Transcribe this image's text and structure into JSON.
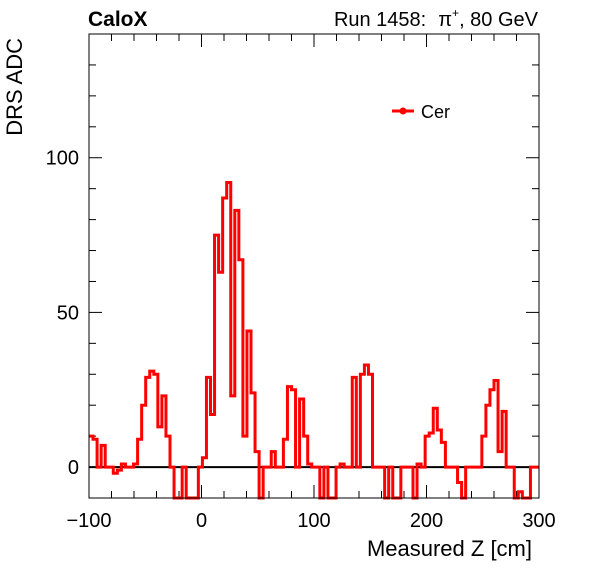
{
  "header": {
    "brand": "CaloX",
    "run_label": "Run 1458:",
    "particle_base": "π",
    "particle_sup": "+",
    "energy_label": ", 80 GeV"
  },
  "chart_data": {
    "type": "line",
    "style": "step-histogram",
    "xlabel": "Measured Z [cm]",
    "ylabel": "DRS ADC",
    "xlim": [
      -100,
      300
    ],
    "ylim": [
      -10,
      140
    ],
    "xticks": [
      -100,
      0,
      100,
      200,
      300
    ],
    "xtick_labels": [
      "−100",
      "0",
      "100",
      "200",
      "300"
    ],
    "yticks": [
      0,
      50,
      100
    ],
    "ytick_labels": [
      "0",
      "50",
      "100"
    ],
    "grid": false,
    "legend_position": "top-right",
    "zero_line": true,
    "series": [
      {
        "name": "Cer",
        "color": "#ff0000",
        "bin_width": 3.6,
        "x_start": -100,
        "values": [
          10,
          9,
          0,
          7,
          0,
          0,
          -2,
          -1,
          1,
          0,
          0,
          1,
          9,
          20,
          29,
          31,
          30,
          13,
          23,
          10,
          0,
          -10,
          -10,
          0,
          -10,
          -10,
          -10,
          0,
          3,
          29,
          17,
          75,
          63,
          87,
          92,
          23,
          83,
          67,
          10,
          44,
          24,
          5,
          -10,
          0,
          0,
          5,
          0,
          0,
          9,
          26,
          25,
          0,
          22,
          10,
          1,
          0,
          0,
          -10,
          0,
          -10,
          -10,
          0,
          1,
          0,
          0,
          29,
          0,
          30,
          33,
          30,
          0,
          0,
          0,
          -10,
          0,
          -10,
          -10,
          0,
          0,
          0,
          -10,
          1,
          0,
          10,
          11,
          19,
          12,
          8,
          0,
          0,
          0,
          -5,
          -10,
          0,
          0,
          0,
          0,
          10,
          20,
          25,
          28,
          5,
          18,
          0,
          0,
          -10,
          -8,
          -10,
          -10,
          0,
          0
        ]
      }
    ]
  }
}
